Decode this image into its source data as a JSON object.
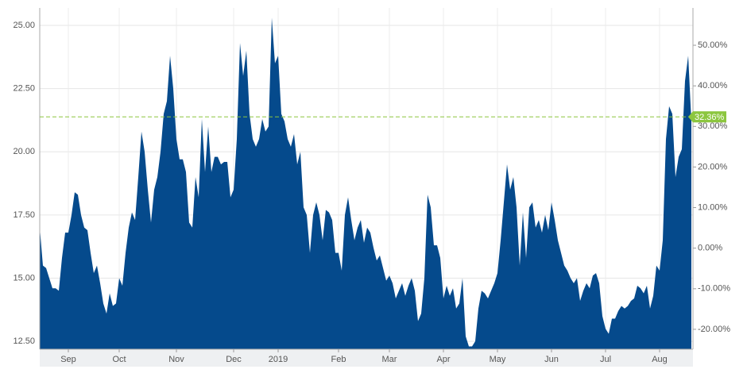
{
  "chart_data": {
    "type": "area",
    "color": "#054a8c",
    "grid": true,
    "categories": [
      null,
      null,
      null,
      null,
      null,
      null,
      null,
      null,
      null,
      "Sep",
      null,
      null,
      null,
      null,
      null,
      null,
      null,
      null,
      null,
      null,
      null,
      null,
      null,
      null,
      null,
      "Oct",
      null,
      null,
      null,
      null,
      null,
      null,
      null,
      null,
      null,
      null,
      null,
      null,
      null,
      null,
      null,
      null,
      null,
      "Nov",
      null,
      null,
      null,
      null,
      null,
      null,
      null,
      null,
      null,
      null,
      null,
      null,
      null,
      null,
      null,
      null,
      null,
      "Dec",
      null,
      null,
      null,
      null,
      null,
      null,
      null,
      null,
      null,
      null,
      null,
      null,
      null,
      "2019",
      null,
      null,
      null,
      null,
      null,
      null,
      null,
      null,
      null,
      null,
      null,
      null,
      null,
      null,
      null,
      null,
      null,
      null,
      "Feb",
      null,
      null,
      null,
      null,
      null,
      null,
      null,
      null,
      null,
      null,
      null,
      null,
      null,
      null,
      null,
      "Mar",
      null,
      null,
      null,
      null,
      null,
      null,
      null,
      null,
      null,
      null,
      null,
      null,
      null,
      null,
      null,
      null,
      "Apr",
      null,
      null,
      null,
      null,
      null,
      null,
      null,
      null,
      null,
      null,
      null,
      null,
      null,
      null,
      null,
      null,
      "May",
      null,
      null,
      null,
      null,
      null,
      null,
      null,
      null,
      null,
      null,
      null,
      null,
      null,
      null,
      null,
      null,
      "Jun",
      null,
      null,
      null,
      null,
      null,
      null,
      null,
      null,
      null,
      null,
      null,
      null,
      null,
      null,
      null,
      null,
      "Jul",
      null,
      null,
      null,
      null,
      null,
      null,
      null,
      null,
      null,
      null,
      null,
      null,
      null,
      null,
      null,
      null,
      "Aug",
      null,
      null,
      null,
      null,
      null,
      null,
      null,
      null,
      null,
      null
    ],
    "values": [
      17.0,
      15.5,
      15.4,
      15.0,
      14.6,
      14.6,
      14.5,
      15.8,
      16.8,
      16.8,
      17.5,
      18.4,
      18.3,
      17.5,
      17.0,
      16.9,
      16.0,
      15.2,
      15.5,
      14.8,
      14.0,
      13.6,
      14.4,
      13.9,
      14.0,
      15.0,
      14.7,
      16.0,
      17.0,
      17.6,
      17.3,
      19.0,
      20.8,
      20.0,
      18.5,
      17.2,
      18.5,
      19.0,
      20.0,
      21.5,
      22.0,
      23.8,
      22.5,
      20.5,
      19.7,
      19.7,
      19.2,
      17.2,
      17.0,
      19.0,
      18.2,
      21.3,
      19.2,
      21.0,
      19.2,
      19.8,
      19.8,
      19.5,
      19.6,
      19.6,
      18.2,
      18.5,
      20.5,
      24.3,
      23.0,
      24.0,
      21.5,
      20.5,
      20.2,
      20.5,
      21.3,
      20.8,
      21.0,
      25.3,
      23.5,
      23.8,
      21.5,
      21.2,
      20.5,
      20.2,
      20.7,
      19.5,
      20.0,
      17.8,
      17.5,
      16.0,
      17.5,
      18.0,
      17.5,
      16.5,
      17.7,
      17.6,
      17.3,
      16.0,
      16.0,
      15.3,
      17.5,
      18.2,
      17.3,
      16.5,
      17.0,
      17.3,
      16.4,
      17.0,
      16.8,
      16.2,
      15.7,
      15.9,
      15.4,
      14.9,
      15.1,
      14.8,
      14.2,
      14.5,
      14.8,
      14.3,
      14.7,
      15.0,
      14.5,
      13.3,
      13.6,
      15.0,
      18.3,
      17.8,
      16.3,
      16.3,
      15.8,
      14.2,
      14.7,
      14.3,
      14.6,
      13.8,
      14.0,
      15.0,
      12.7,
      12.3,
      12.3,
      12.5,
      13.8,
      14.5,
      14.4,
      14.2,
      14.5,
      14.8,
      15.2,
      16.5,
      18.0,
      19.5,
      18.5,
      19.0,
      17.8,
      15.5,
      17.6,
      15.8,
      17.8,
      18.0,
      17.0,
      17.3,
      16.8,
      17.5,
      16.9,
      18.0,
      17.3,
      16.5,
      16.0,
      15.5,
      15.3,
      15.0,
      14.8,
      15.0,
      14.1,
      14.5,
      14.8,
      14.6,
      15.1,
      15.2,
      14.8,
      13.5,
      13.0,
      12.8,
      13.4,
      13.4,
      13.7,
      13.9,
      13.8,
      13.9,
      14.1,
      14.2,
      14.7,
      14.6,
      14.4,
      14.7,
      13.8,
      14.3,
      15.5,
      15.3,
      16.5,
      20.5,
      21.8,
      21.5,
      19.0,
      19.8,
      20.1,
      22.8,
      23.8,
      21.2
    ],
    "ylim": [
      12.19,
      25.69
    ],
    "yticks": [
      {
        "value": 12.5,
        "label": "12.50"
      },
      {
        "value": 15,
        "label": "15.00"
      },
      {
        "value": 17.5,
        "label": "17.50"
      },
      {
        "value": 20,
        "label": "20.00"
      },
      {
        "value": 22.5,
        "label": "22.50"
      },
      {
        "value": 25,
        "label": "25.00"
      }
    ],
    "y2lim": [
      -24.9,
      59.2
    ],
    "y2ticks": [
      {
        "value": -20,
        "label": "-20.00%"
      },
      {
        "value": -10,
        "label": "-10.00%"
      },
      {
        "value": 0,
        "label": "0.00%"
      },
      {
        "value": 10,
        "label": "10.00%"
      },
      {
        "value": 20,
        "label": "20.00%"
      },
      {
        "value": 30,
        "label": "30.00%"
      },
      {
        "value": 40,
        "label": "40.00%"
      },
      {
        "value": 50,
        "label": "50.00%"
      }
    ],
    "reference": {
      "value": 32.36,
      "label": "32.36%",
      "axis": "y2",
      "color": "#8cc63f"
    }
  }
}
